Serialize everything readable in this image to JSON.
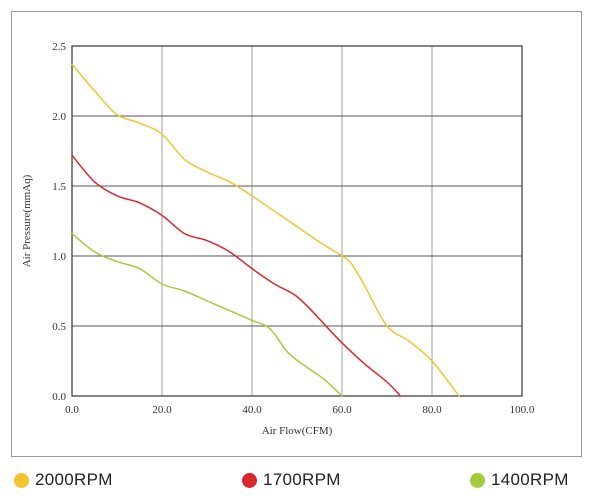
{
  "chart_data": {
    "type": "line",
    "title": "",
    "xlabel": "Air Flow(CFM)",
    "ylabel": "Air Pressure(mmAq)",
    "xlim": [
      0,
      100
    ],
    "ylim": [
      0,
      2.5
    ],
    "xticks": [
      "0.0",
      "20.0",
      "40.0",
      "60.0",
      "80.0",
      "100.0"
    ],
    "yticks": [
      "0.0",
      "0.5",
      "1.0",
      "1.5",
      "2.0",
      "2.5"
    ],
    "grid": true,
    "legend_position": "bottom",
    "series": [
      {
        "name": "2000RPM",
        "color": "#f2c42e",
        "x": [
          0,
          5,
          10,
          15,
          20,
          25,
          30,
          35,
          40,
          45,
          50,
          55,
          60,
          62,
          65,
          70,
          75,
          80,
          86
        ],
        "y": [
          2.37,
          2.18,
          2.01,
          1.95,
          1.87,
          1.69,
          1.6,
          1.53,
          1.43,
          1.32,
          1.21,
          1.1,
          1.0,
          0.95,
          0.79,
          0.5,
          0.39,
          0.25,
          0.0
        ]
      },
      {
        "name": "1700RPM",
        "color": "#d8272d",
        "x": [
          0,
          5,
          10,
          15,
          20,
          25,
          30,
          35,
          40,
          45,
          50,
          55,
          57,
          60,
          65,
          70,
          73
        ],
        "y": [
          1.72,
          1.53,
          1.43,
          1.38,
          1.29,
          1.16,
          1.11,
          1.03,
          0.91,
          0.8,
          0.71,
          0.55,
          0.48,
          0.38,
          0.23,
          0.1,
          0.0
        ]
      },
      {
        "name": "1400RPM",
        "color": "#a3cc3d",
        "x": [
          0,
          5,
          10,
          15,
          20,
          25,
          30,
          35,
          40,
          44,
          48,
          52,
          56,
          60
        ],
        "y": [
          1.16,
          1.03,
          0.96,
          0.91,
          0.8,
          0.75,
          0.68,
          0.61,
          0.54,
          0.48,
          0.31,
          0.21,
          0.12,
          0.0
        ]
      }
    ]
  },
  "legend": [
    {
      "label": "2000RPM",
      "color": "#f2c42e"
    },
    {
      "label": "1700RPM",
      "color": "#d8272d"
    },
    {
      "label": "1400RPM",
      "color": "#a3cc3d"
    }
  ]
}
